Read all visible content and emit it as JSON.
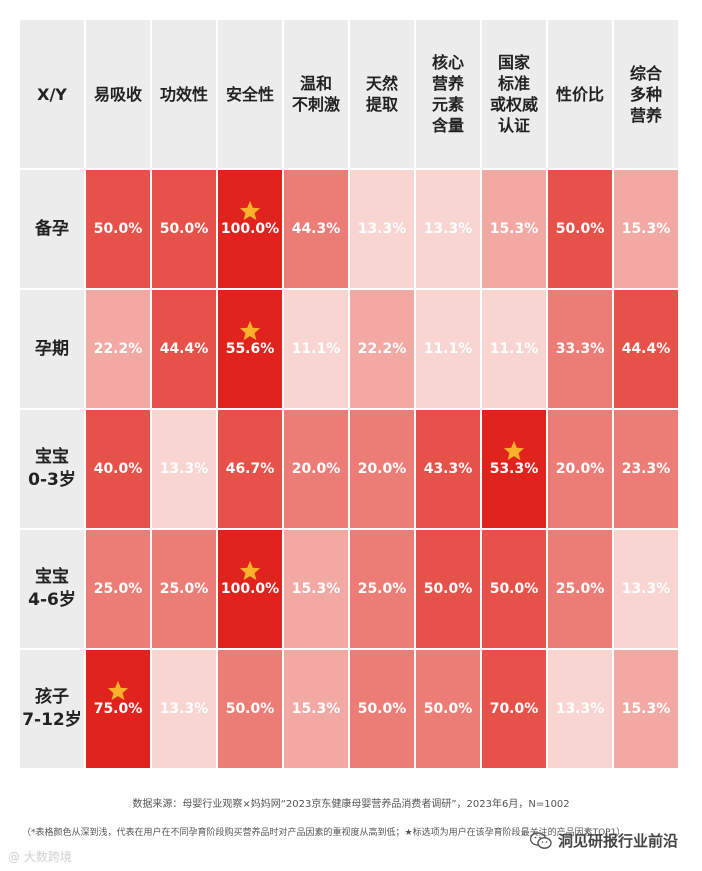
{
  "chart_data": {
    "type": "heatmap",
    "corner": "X/Y",
    "columns": [
      [
        "易吸收"
      ],
      [
        "功效性"
      ],
      [
        "安全性"
      ],
      [
        "温和",
        "不刺激"
      ],
      [
        "天然",
        "提取"
      ],
      [
        "核心",
        "营养",
        "元素",
        "含量"
      ],
      [
        "国家",
        "标准",
        "或权威",
        "认证"
      ],
      [
        "性价比"
      ],
      [
        "综合",
        "多种",
        "营养"
      ]
    ],
    "rows": [
      [
        "备孕"
      ],
      [
        "孕期"
      ],
      [
        "宝宝",
        "0-3岁"
      ],
      [
        "宝宝",
        "4-6岁"
      ],
      [
        "孩子",
        "7-12岁"
      ]
    ],
    "values": [
      [
        50.0,
        50.0,
        100.0,
        44.3,
        13.3,
        13.3,
        15.3,
        50.0,
        15.3
      ],
      [
        22.2,
        44.4,
        55.6,
        11.1,
        22.2,
        11.1,
        11.1,
        33.3,
        44.4
      ],
      [
        40.0,
        13.3,
        46.7,
        20.0,
        20.0,
        43.3,
        53.3,
        20.0,
        23.3
      ],
      [
        25.0,
        25.0,
        100.0,
        15.3,
        25.0,
        50.0,
        50.0,
        25.0,
        13.3
      ],
      [
        75.0,
        13.3,
        50.0,
        15.3,
        50.0,
        50.0,
        70.0,
        13.3,
        15.3
      ]
    ],
    "labels": [
      [
        "50.0%",
        "50.0%",
        "100.0%",
        "44.3%",
        "13.3%",
        "13.3%",
        "15.3%",
        "50.0%",
        "15.3%"
      ],
      [
        "22.2%",
        "44.4%",
        "55.6%",
        "11.1%",
        "22.2%",
        "11.1%",
        "11.1%",
        "33.3%",
        "44.4%"
      ],
      [
        "40.0%",
        "13.3%",
        "46.7%",
        "20.0%",
        "20.0%",
        "43.3%",
        "53.3%",
        "20.0%",
        "23.3%"
      ],
      [
        "25.0%",
        "25.0%",
        "100.0%",
        "15.3%",
        "25.0%",
        "50.0%",
        "50.0%",
        "25.0%",
        "13.3%"
      ],
      [
        "75.0%",
        "13.3%",
        "50.0%",
        "15.3%",
        "50.0%",
        "50.0%",
        "70.0%",
        "13.3%",
        "15.3%"
      ]
    ],
    "shade_level": [
      [
        1,
        1,
        0,
        2,
        4,
        4,
        3,
        1,
        3
      ],
      [
        3,
        1,
        0,
        4,
        3,
        4,
        4,
        2,
        1
      ],
      [
        1,
        4,
        1,
        2,
        2,
        1,
        0,
        2,
        2
      ],
      [
        2,
        2,
        0,
        3,
        2,
        1,
        1,
        2,
        4
      ],
      [
        0,
        4,
        2,
        3,
        2,
        2,
        1,
        4,
        3
      ]
    ],
    "starred": [
      [
        0,
        2
      ],
      [
        1,
        2
      ],
      [
        2,
        6
      ],
      [
        3,
        2
      ],
      [
        4,
        0
      ]
    ],
    "colors": {
      "level_0": "#e0231d",
      "level_1": "#e6514a",
      "level_2": "#ec7d76",
      "level_3": "#f2a8a3",
      "level_4": "#f9d5d2",
      "header_bg": "#ececec",
      "star": "#fbb22a",
      "text_light": "#ffffff"
    }
  },
  "source": "数据来源：母婴行业观察×妈妈网“2023京东健康母婴营养品消费者调研”，2023年6月，N=1002",
  "note": "（*表格颜色从深到浅，代表在用户在不同孕育阶段购买营养品时对产品因素的重视度从高到低；★标选项为用户在该孕育阶段最关注的产品因素TOP1）",
  "watermark_left": "@ 大数跨境",
  "watermark_right": "洞见研报行业前沿",
  "icons": {
    "star": "star-icon",
    "wechat": "wechat-icon"
  }
}
